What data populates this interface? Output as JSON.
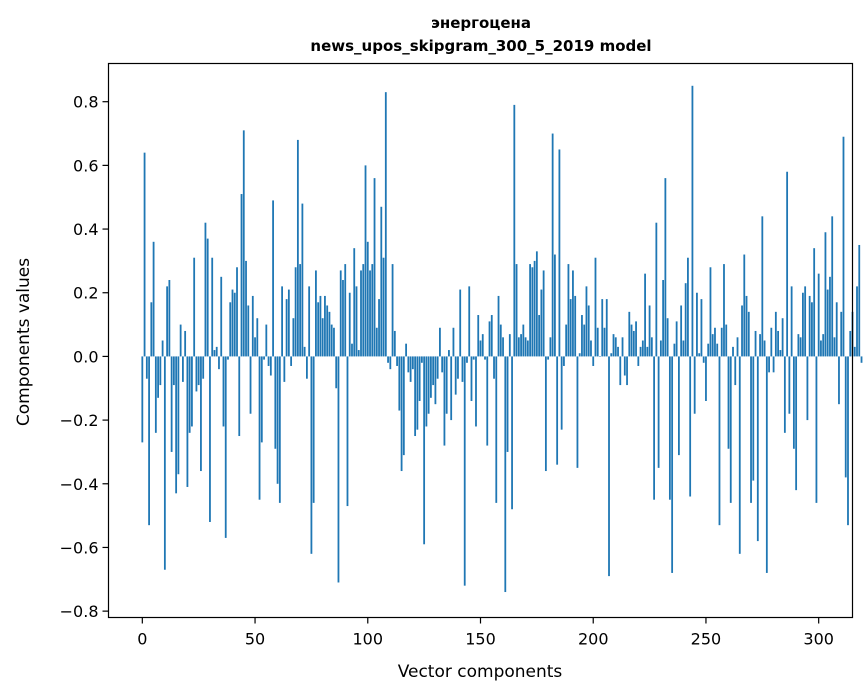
{
  "chart_data": {
    "type": "bar",
    "title_line1": "энергоцена",
    "title_line2": "news_upos_skipgram_300_5_2019 model",
    "xlabel": "Vector components",
    "ylabel": "Components values",
    "bar_color": "#1f77b4",
    "xlim": [
      -15,
      315
    ],
    "ylim": [
      -0.82,
      0.92
    ],
    "xticks": [
      0,
      50,
      100,
      150,
      200,
      250,
      300
    ],
    "yticks": [
      -0.8,
      -0.6,
      -0.4,
      -0.2,
      0.0,
      0.2,
      0.4,
      0.6,
      0.8
    ],
    "xtick_labels": [
      "0",
      "50",
      "100",
      "150",
      "200",
      "250",
      "300"
    ],
    "ytick_labels": [
      "−0.8",
      "−0.6",
      "−0.4",
      "−0.2",
      "0.0",
      "0.2",
      "0.4",
      "0.6",
      "0.8"
    ],
    "values": [
      -0.27,
      0.64,
      -0.07,
      -0.53,
      0.17,
      0.36,
      -0.24,
      -0.13,
      -0.09,
      0.05,
      -0.67,
      0.22,
      0.24,
      -0.3,
      -0.09,
      -0.43,
      -0.37,
      0.1,
      -0.08,
      0.08,
      -0.41,
      -0.24,
      -0.22,
      0.31,
      -0.11,
      -0.09,
      -0.36,
      -0.07,
      0.42,
      0.37,
      -0.52,
      0.31,
      0.02,
      0.03,
      -0.04,
      0.25,
      -0.22,
      -0.57,
      -0.01,
      0.17,
      0.21,
      0.2,
      0.28,
      -0.25,
      0.51,
      0.71,
      0.3,
      0.16,
      -0.18,
      0.19,
      0.06,
      0.12,
      -0.45,
      -0.27,
      -0.01,
      0.1,
      -0.03,
      -0.06,
      0.49,
      -0.29,
      -0.4,
      -0.46,
      0.22,
      -0.08,
      0.18,
      0.21,
      -0.03,
      0.12,
      0.28,
      0.68,
      0.29,
      0.48,
      0.03,
      -0.07,
      0.22,
      -0.62,
      -0.46,
      0.27,
      0.17,
      0.19,
      0.12,
      0.19,
      0.16,
      0.14,
      0.1,
      0.09,
      -0.1,
      -0.71,
      0.27,
      0.24,
      0.29,
      -0.47,
      0.2,
      0.04,
      0.34,
      0.22,
      0.02,
      0.27,
      0.29,
      0.6,
      0.36,
      0.27,
      0.29,
      0.56,
      0.09,
      0.18,
      0.47,
      0.31,
      0.83,
      -0.02,
      -0.04,
      0.29,
      0.08,
      -0.03,
      -0.17,
      -0.36,
      -0.31,
      0.04,
      -0.05,
      -0.08,
      -0.04,
      -0.25,
      -0.23,
      -0.14,
      -0.02,
      -0.59,
      -0.22,
      -0.18,
      -0.13,
      -0.09,
      -0.15,
      -0.07,
      0.09,
      -0.05,
      -0.28,
      -0.18,
      0.02,
      -0.2,
      0.09,
      -0.12,
      -0.07,
      0.21,
      -0.08,
      -0.72,
      -0.02,
      0.22,
      -0.14,
      -0.01,
      -0.22,
      0.13,
      0.05,
      0.07,
      -0.01,
      -0.28,
      0.11,
      0.13,
      -0.07,
      -0.46,
      0.19,
      0.1,
      0.06,
      -0.74,
      -0.3,
      0.07,
      -0.48,
      0.79,
      0.29,
      0.06,
      0.07,
      0.1,
      0.06,
      0.05,
      0.29,
      0.28,
      0.3,
      0.33,
      0.13,
      0.21,
      0.27,
      -0.36,
      -0.01,
      0.06,
      0.7,
      0.32,
      -0.34,
      0.65,
      -0.23,
      -0.03,
      0.1,
      0.29,
      0.18,
      0.27,
      0.19,
      -0.35,
      0.01,
      0.13,
      0.1,
      0.22,
      0.16,
      0.05,
      -0.03,
      0.31,
      0.09,
      0.0,
      0.18,
      0.09,
      0.18,
      -0.69,
      0.01,
      0.07,
      0.06,
      0.03,
      -0.09,
      0.06,
      -0.06,
      -0.09,
      0.14,
      0.1,
      0.08,
      0.11,
      -0.03,
      0.03,
      0.05,
      0.26,
      0.03,
      0.16,
      0.06,
      -0.45,
      0.42,
      -0.35,
      0.05,
      0.24,
      0.56,
      0.12,
      -0.45,
      -0.68,
      0.04,
      0.11,
      -0.31,
      0.16,
      0.05,
      0.23,
      0.31,
      -0.44,
      0.85,
      -0.18,
      0.2,
      0.01,
      0.18,
      -0.02,
      -0.14,
      0.04,
      0.28,
      0.07,
      0.09,
      0.04,
      -0.53,
      0.09,
      0.29,
      0.1,
      -0.29,
      -0.46,
      0.03,
      -0.09,
      0.06,
      -0.62,
      0.16,
      0.32,
      0.19,
      0.14,
      -0.46,
      -0.39,
      0.08,
      -0.58,
      0.07,
      0.44,
      0.05,
      -0.68,
      -0.05,
      0.09,
      -0.05,
      0.14,
      0.08,
      0.02,
      0.12,
      -0.24,
      0.58,
      -0.18,
      0.22,
      -0.29,
      -0.42,
      0.07,
      0.06,
      0.2,
      0.22,
      -0.2,
      0.19,
      0.17,
      0.34,
      -0.46,
      0.26,
      0.05,
      0.07,
      0.39,
      0.21,
      0.25,
      0.44,
      0.06,
      0.17,
      -0.15,
      0.14,
      0.69,
      -0.38,
      -0.53,
      0.08,
      0.14,
      0.03,
      0.22,
      0.35,
      -0.02
    ]
  }
}
